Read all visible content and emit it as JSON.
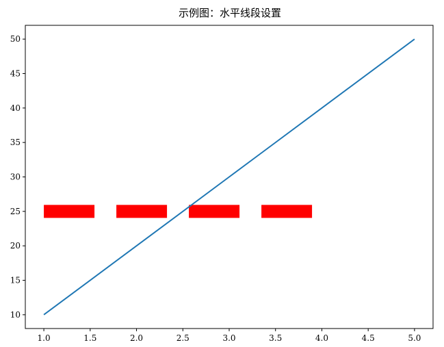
{
  "chart_data": {
    "type": "line",
    "title": "示例图：水平线段设置",
    "xlabel": "",
    "ylabel": "",
    "xlim": [
      0.8,
      5.2
    ],
    "ylim": [
      8,
      52
    ],
    "xticks": [
      1.0,
      1.5,
      2.0,
      2.5,
      3.0,
      3.5,
      4.0,
      4.5,
      5.0
    ],
    "xtick_labels": [
      "1.0",
      "1.5",
      "2.0",
      "2.5",
      "3.0",
      "3.5",
      "4.0",
      "4.5",
      "5.0"
    ],
    "yticks": [
      10,
      15,
      20,
      25,
      30,
      35,
      40,
      45,
      50
    ],
    "ytick_labels": [
      "10",
      "15",
      "20",
      "25",
      "30",
      "35",
      "40",
      "45",
      "50"
    ],
    "grid": false,
    "series": [
      {
        "x": [
          1,
          2,
          3,
          4,
          5
        ],
        "y": [
          10,
          20,
          30,
          40,
          50
        ],
        "color": "#1f77b4",
        "style": "solid"
      }
    ],
    "hline": {
      "y": 25,
      "xmin": 1.0,
      "xmax": 3.9,
      "color": "#ff0000",
      "style": "dashed"
    }
  }
}
